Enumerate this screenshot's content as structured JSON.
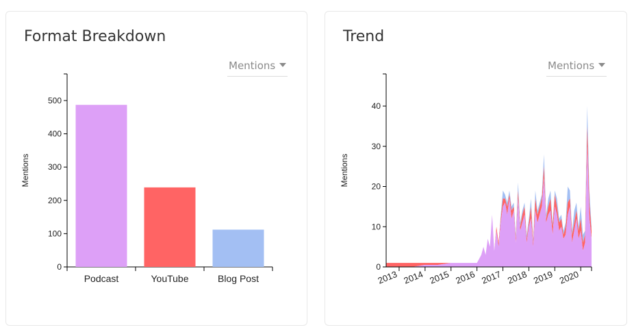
{
  "panels": {
    "left": {
      "title": "Format Breakdown",
      "dropdown_label": "Mentions"
    },
    "right": {
      "title": "Trend",
      "dropdown_label": "Mentions"
    }
  },
  "colors": {
    "podcast": "#dda0f7",
    "youtube": "#ff6464",
    "blog_post": "#a3bff3"
  },
  "icons": {
    "dropdown": "caret-down-icon"
  },
  "chart_data": [
    {
      "type": "bar",
      "categories": [
        "Podcast",
        "YouTube",
        "Blog Post"
      ],
      "values": [
        487,
        239,
        112
      ],
      "xlabel": "",
      "ylabel": "Mentions",
      "ylim": [
        0,
        580
      ],
      "yticks": [
        0,
        100,
        200,
        300,
        400,
        500
      ],
      "grid": false
    },
    {
      "type": "area",
      "stacked": true,
      "xlabel": "",
      "ylabel": "Mentions",
      "ylim": [
        0,
        48
      ],
      "yticks": [
        0,
        10,
        20,
        30,
        40
      ],
      "xticks": [
        "2013",
        "2014",
        "2015",
        "2016",
        "2017",
        "2018",
        "2019",
        "2020"
      ],
      "x_range": [
        "2012-07",
        "2020-06"
      ],
      "grid": false,
      "x": [
        "2012-07",
        "2013-01",
        "2013-07",
        "2014-01",
        "2014-07",
        "2015-01",
        "2015-07",
        "2015-10",
        "2016-01",
        "2016-02",
        "2016-03",
        "2016-04",
        "2016-05",
        "2016-06",
        "2016-07",
        "2016-08",
        "2016-09",
        "2016-10",
        "2016-11",
        "2016-12",
        "2017-01",
        "2017-02",
        "2017-03",
        "2017-04",
        "2017-05",
        "2017-06",
        "2017-07",
        "2017-08",
        "2017-09",
        "2017-10",
        "2017-11",
        "2017-12",
        "2018-01",
        "2018-02",
        "2018-03",
        "2018-04",
        "2018-05",
        "2018-06",
        "2018-07",
        "2018-08",
        "2018-09",
        "2018-10",
        "2018-11",
        "2018-12",
        "2019-01",
        "2019-02",
        "2019-03",
        "2019-04",
        "2019-05",
        "2019-06",
        "2019-07",
        "2019-08",
        "2019-09",
        "2019-10",
        "2019-11",
        "2019-12",
        "2020-01",
        "2020-02",
        "2020-03",
        "2020-04",
        "2020-05",
        "2020-06"
      ],
      "series": [
        {
          "values": [
            0,
            0,
            0,
            0.5,
            0.5,
            1,
            1,
            1,
            1,
            2,
            3,
            5,
            3,
            7,
            5,
            13,
            4,
            9,
            5,
            11,
            15,
            16,
            13,
            17,
            12,
            14,
            6,
            17,
            9,
            11,
            13,
            6,
            10,
            12,
            5,
            14,
            11,
            13,
            15,
            22,
            11,
            13,
            14,
            8,
            15,
            13,
            9,
            10,
            7,
            8,
            13,
            15,
            6,
            9,
            12,
            7,
            9,
            4,
            6,
            30,
            12,
            7
          ]
        },
        {
          "values": [
            1,
            1,
            1,
            0.5,
            0.5,
            0,
            0,
            0,
            0,
            0,
            0,
            0,
            0,
            0,
            0,
            0,
            0,
            1,
            1,
            1,
            2,
            1,
            2,
            1,
            2,
            1,
            1,
            2,
            1,
            2,
            2,
            1,
            1,
            3,
            1,
            3,
            2,
            2,
            2,
            3,
            1,
            2,
            3,
            2,
            3,
            2,
            2,
            2,
            1,
            2,
            3,
            2,
            2,
            2,
            2,
            2,
            3,
            2,
            2,
            5,
            4,
            2
          ]
        },
        {
          "values": [
            0,
            0,
            0,
            0,
            0,
            0,
            0,
            0,
            0,
            0,
            0,
            0,
            0,
            0,
            0,
            0,
            0,
            0,
            0,
            1,
            2,
            1,
            1,
            1,
            1,
            1,
            1,
            2,
            1,
            1,
            1,
            1,
            1,
            2,
            1,
            2,
            1,
            1,
            1,
            3,
            1,
            2,
            2,
            1,
            1,
            2,
            1,
            1,
            1,
            1,
            4,
            2,
            1,
            3,
            2,
            1,
            3,
            2,
            1,
            5,
            3,
            1
          ]
        }
      ],
      "series_colors": [
        "#dda0f7",
        "#ff6464",
        "#a3bff3"
      ]
    }
  ]
}
